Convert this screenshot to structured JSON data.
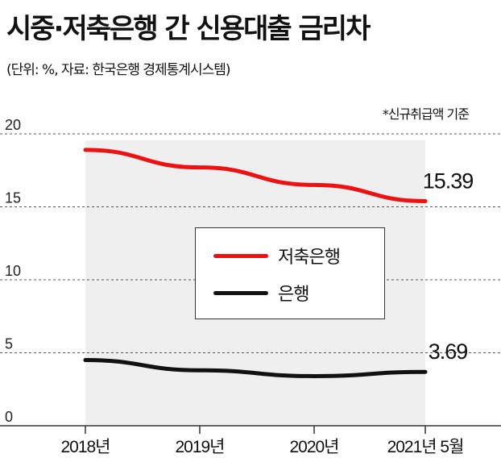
{
  "title": "시중·저축은행 간 신용대출 금리차",
  "subtitle": "(단위: %, 자료: 한국은행 경제통계시스템)",
  "note": "*신규취급액 기준",
  "colors": {
    "savings_bank": "#ee1111",
    "bank": "#111111",
    "plot_bg": "#efefef"
  },
  "chart_data": {
    "type": "line",
    "categories": [
      "2018년",
      "2019년",
      "2020년",
      "2021년 5월"
    ],
    "yticks": [
      "0",
      "5",
      "10",
      "15",
      "20"
    ],
    "ylim": [
      0,
      20
    ],
    "grid": "dashed horizontal",
    "legend_position": "center",
    "series": [
      {
        "name": "저축은행",
        "values": [
          18.9,
          17.7,
          16.5,
          15.39
        ],
        "color": "#ee1111"
      },
      {
        "name": "은행",
        "values": [
          4.5,
          3.8,
          3.4,
          3.69
        ],
        "color": "#111111"
      }
    ],
    "data_labels": [
      {
        "series": "저축은행",
        "text": "15.39"
      },
      {
        "series": "은행",
        "text": "3.69"
      }
    ]
  }
}
